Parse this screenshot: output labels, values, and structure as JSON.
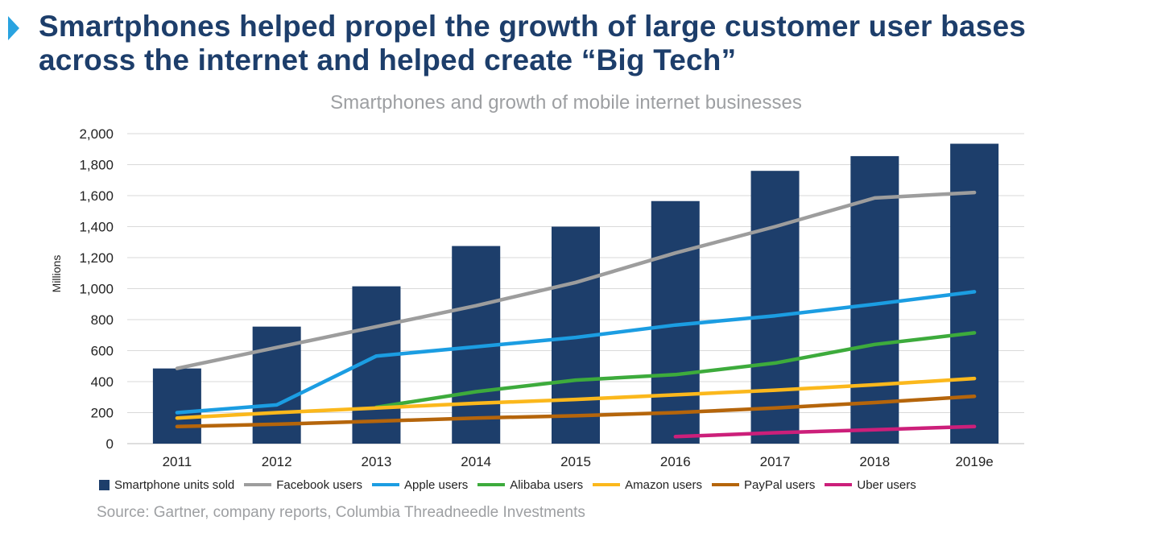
{
  "heading": {
    "line1": "Smartphones helped propel the growth of large customer user bases",
    "line2": "across the internet and helped create “Big Tech”"
  },
  "source": "Source: Gartner, company reports, Columbia Threadneedle Investments",
  "chart_data": {
    "type": "bar",
    "title": "Smartphones and growth of mobile internet businesses",
    "xlabel": "",
    "ylabel": "Millions",
    "ylim": [
      0,
      2000
    ],
    "yticks": [
      0,
      200,
      400,
      600,
      800,
      1000,
      1200,
      1400,
      1600,
      1800,
      2000
    ],
    "ytick_labels": [
      "0",
      "200",
      "400",
      "600",
      "800",
      "1,000",
      "1,200",
      "1,400",
      "1,600",
      "1,800",
      "2,000"
    ],
    "grid": true,
    "legend_position": "bottom",
    "categories": [
      "2011",
      "2012",
      "2013",
      "2014",
      "2015",
      "2016",
      "2017",
      "2018",
      "2019e"
    ],
    "series": [
      {
        "name": "Smartphone units sold",
        "kind": "bar",
        "color": "#1d3e6b",
        "values": [
          485,
          755,
          1015,
          1275,
          1400,
          1565,
          1760,
          1855,
          1935
        ]
      },
      {
        "name": "Facebook users",
        "kind": "line",
        "color": "#9d9d9d",
        "values": [
          485,
          620,
          755,
          890,
          1040,
          1230,
          1400,
          1585,
          1620
        ]
      },
      {
        "name": "Apple users",
        "kind": "line",
        "color": "#1b9de2",
        "values": [
          200,
          250,
          565,
          625,
          685,
          765,
          825,
          900,
          980
        ]
      },
      {
        "name": "Alibaba users",
        "kind": "line",
        "color": "#3dab3c",
        "values": [
          null,
          null,
          235,
          335,
          410,
          445,
          520,
          640,
          715
        ]
      },
      {
        "name": "Amazon users",
        "kind": "line",
        "color": "#fbb81c",
        "values": [
          165,
          200,
          230,
          260,
          285,
          315,
          345,
          380,
          420
        ]
      },
      {
        "name": "PayPal users",
        "kind": "line",
        "color": "#b5650b",
        "values": [
          110,
          125,
          145,
          165,
          180,
          200,
          230,
          265,
          305
        ]
      },
      {
        "name": "Uber users",
        "kind": "line",
        "color": "#cc1f7a",
        "values": [
          null,
          null,
          null,
          null,
          null,
          45,
          70,
          90,
          110
        ]
      }
    ]
  }
}
